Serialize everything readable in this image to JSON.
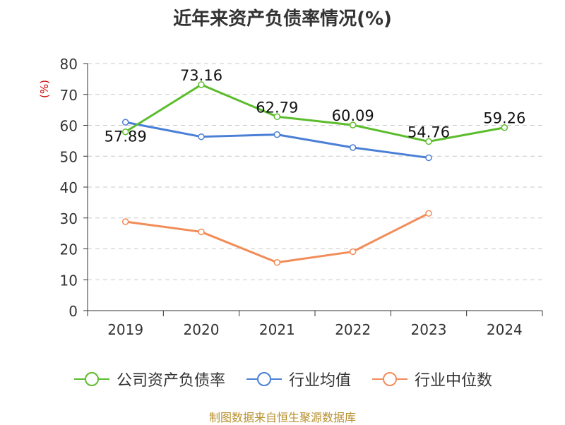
{
  "chart_data": {
    "type": "line",
    "title": "近年来资产负债率情况(%)",
    "ylabel": "(%)",
    "categories": [
      "2019",
      "2020",
      "2021",
      "2022",
      "2023",
      "2024"
    ],
    "ylim": [
      0,
      80
    ],
    "yticks": [
      0,
      10,
      20,
      30,
      40,
      50,
      60,
      70,
      80
    ],
    "grid": true,
    "legend_position": "bottom",
    "series": [
      {
        "name": "公司资产负债率",
        "color": "#5cbd2c",
        "values": [
          57.89,
          73.16,
          62.79,
          60.09,
          54.76,
          59.26
        ],
        "data_labels": [
          "57.89",
          "73.16",
          "62.79",
          "60.09",
          "54.76",
          "59.26"
        ]
      },
      {
        "name": "行业均值",
        "color": "#4a7fd6",
        "values": [
          61.0,
          56.3,
          57.0,
          52.8,
          49.5,
          null
        ]
      },
      {
        "name": "行业中位数",
        "color": "#f28c58",
        "values": [
          28.8,
          25.5,
          15.6,
          19.1,
          31.5,
          null
        ]
      }
    ]
  },
  "source_note": "制图数据来自恒生聚源数据库"
}
